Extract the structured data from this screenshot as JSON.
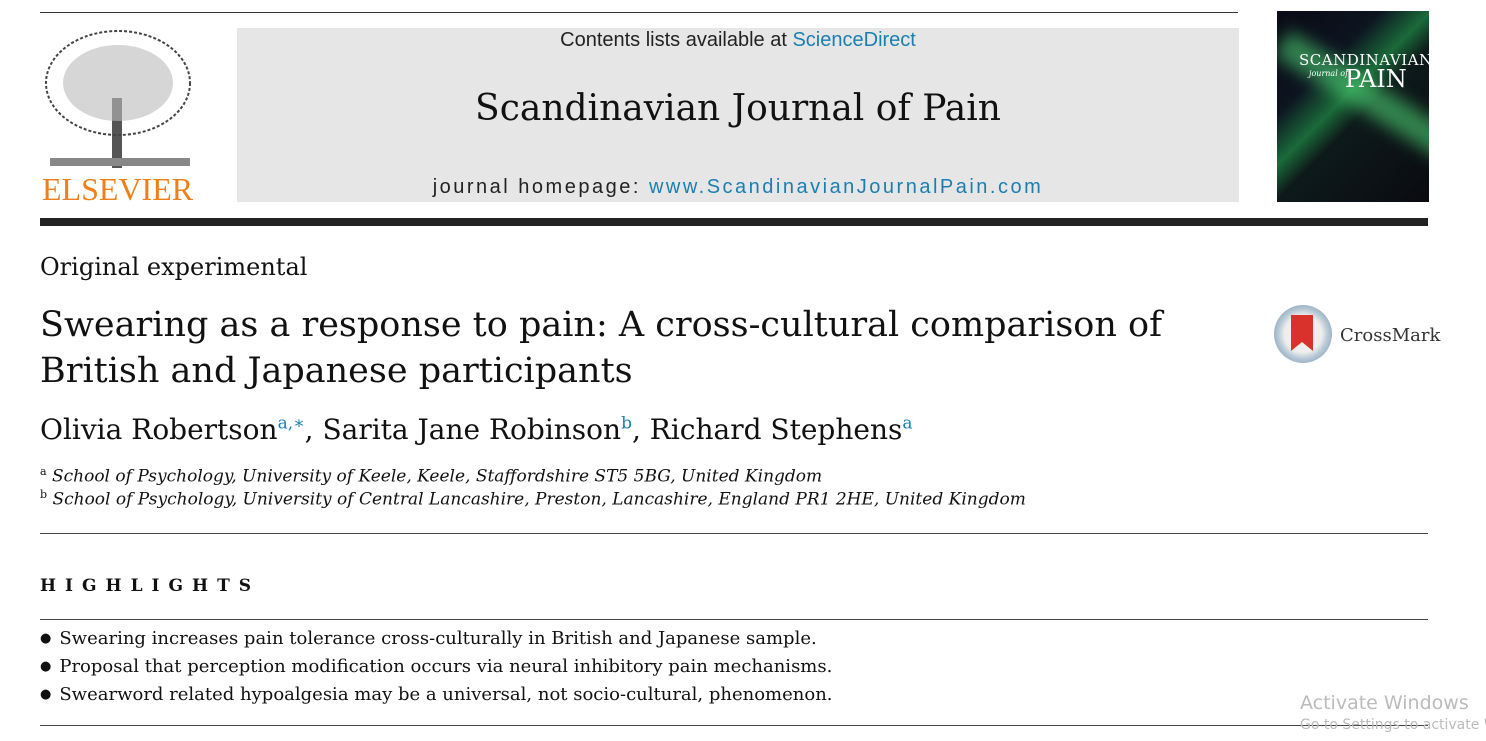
{
  "header": {
    "contents_prefix": "Contents lists available at ",
    "contents_link": "ScienceDirect",
    "journal_title": "Scandinavian Journal of Pain",
    "homepage_prefix": "journal homepage: ",
    "homepage_link": "www.ScandinavianJournalPain.com",
    "publisher": "ELSEVIER",
    "cover": {
      "line1": "SCANDINAVIAN",
      "line2": "journal of",
      "line3": "PAIN"
    }
  },
  "article": {
    "section": "Original experimental",
    "title": "Swearing as a response to pain: A cross-cultural comparison of British and Japanese participants",
    "crossmark": "CrossMark",
    "authors": [
      {
        "name": "Olivia Robertson",
        "sup": "a,∗",
        "sep": ", "
      },
      {
        "name": "Sarita Jane Robinson",
        "sup": "b",
        "sep": ", "
      },
      {
        "name": "Richard Stephens",
        "sup": "a",
        "sep": ""
      }
    ],
    "affiliations": [
      {
        "label": "a",
        "text": "School of Psychology, University of Keele, Keele, Staffordshire ST5 5BG, United Kingdom"
      },
      {
        "label": "b",
        "text": "School of Psychology, University of Central Lancashire, Preston, Lancashire, England PR1 2HE, United Kingdom"
      }
    ]
  },
  "highlights": {
    "heading": "HIGHLIGHTS",
    "items": [
      "Swearing increases pain tolerance cross-culturally in British and Japanese sample.",
      "Proposal that perception modification occurs via neural inhibitory pain mechanisms.",
      "Swearword related hypoalgesia may be a universal, not socio-cultural, phenomenon."
    ]
  },
  "watermark": {
    "line1": "Activate Windows",
    "line2": "Go to Settings to activate W"
  },
  "colors": {
    "link": "#1a7fb0",
    "elsevier": "#f07f1a"
  }
}
